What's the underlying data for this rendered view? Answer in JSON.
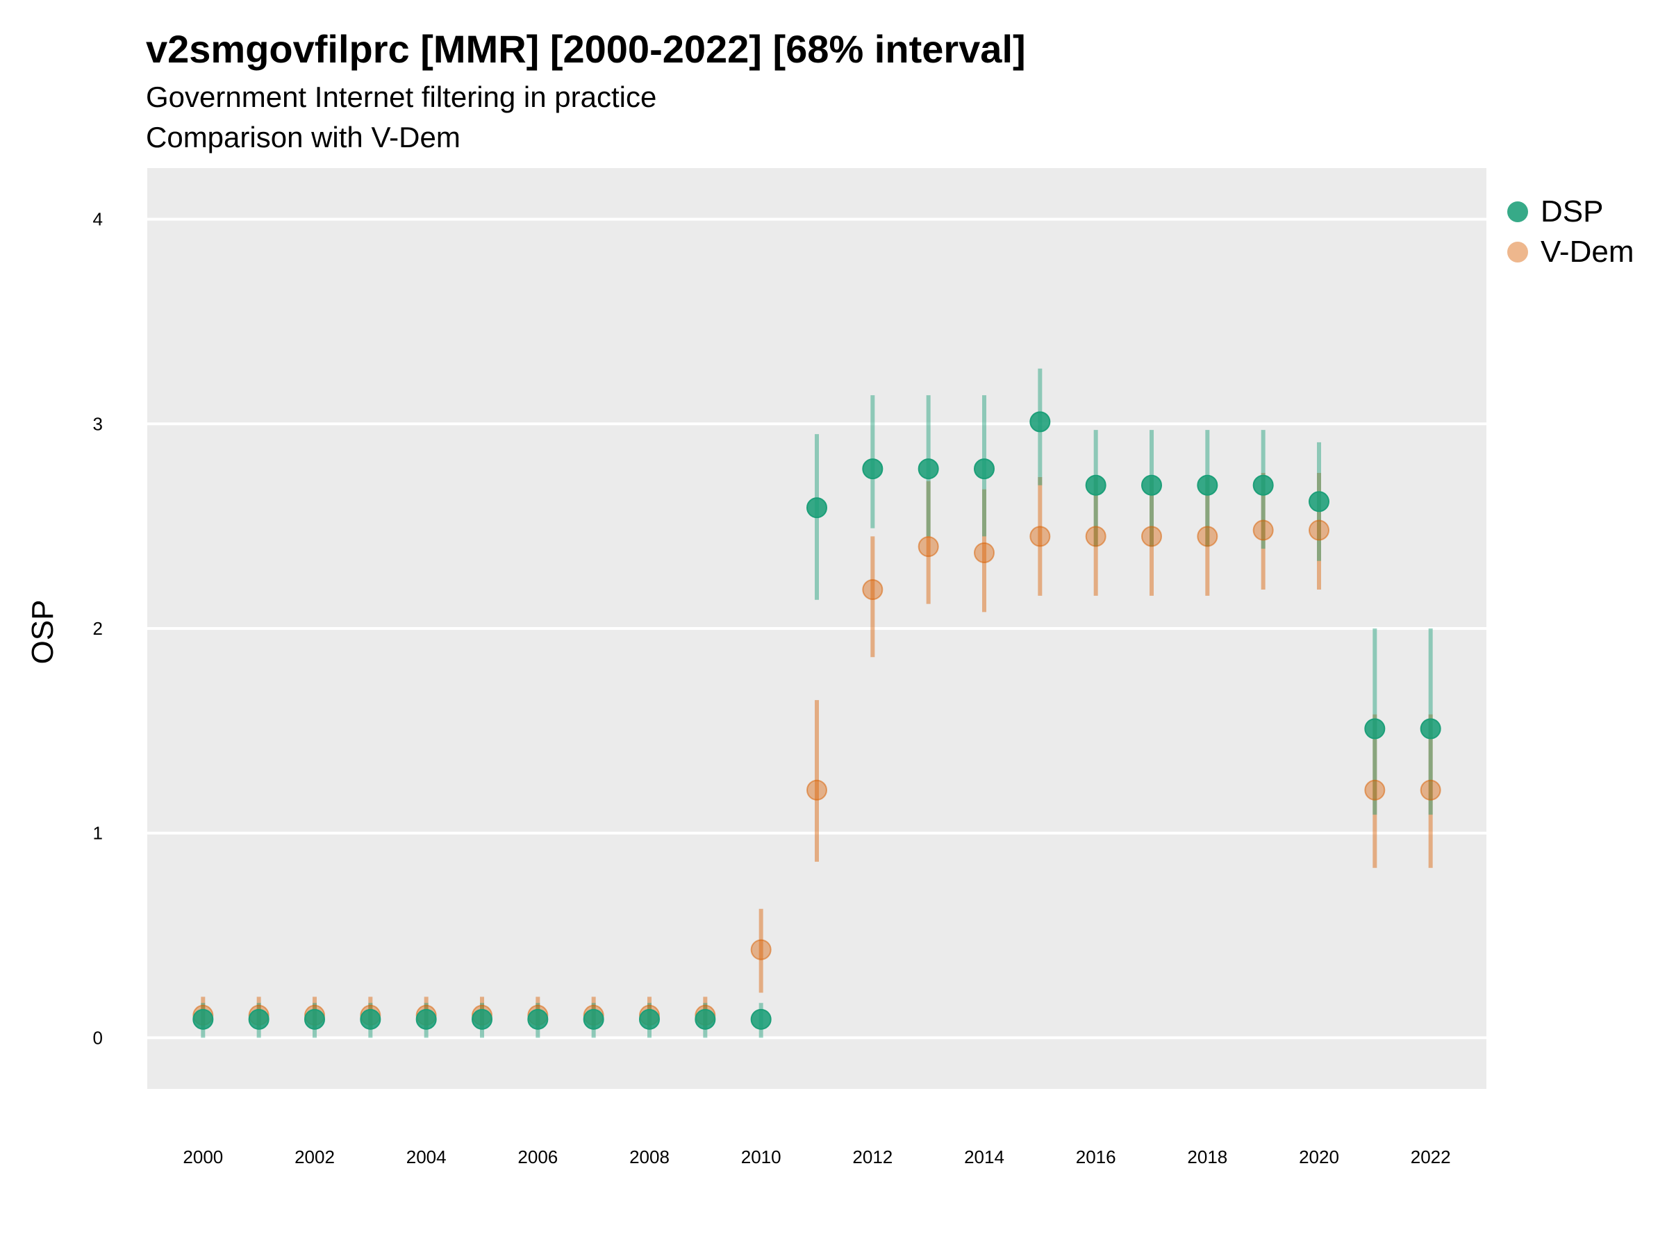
{
  "chart_data": {
    "type": "scatter",
    "title": "v2smgovfilprc [MMR] [2000-2022] [68% interval]",
    "subtitle": "Government Internet filtering in practice",
    "subtitle2": "Comparison with V-Dem",
    "xlabel": "",
    "ylabel": "OSP",
    "xlim": [
      1999.0,
      2023.0
    ],
    "ylim": [
      -0.25,
      4.25
    ],
    "yticks": [
      0,
      1,
      2,
      3,
      4
    ],
    "xticks": [
      2000,
      2002,
      2004,
      2006,
      2008,
      2010,
      2012,
      2014,
      2016,
      2018,
      2020,
      2022
    ],
    "grid": true,
    "legend_position": "right",
    "series": [
      {
        "name": "DSP",
        "color": "#1b9e77",
        "x": [
          2000,
          2001,
          2002,
          2003,
          2004,
          2005,
          2006,
          2007,
          2008,
          2009,
          2010,
          2011,
          2012,
          2013,
          2014,
          2015,
          2016,
          2017,
          2018,
          2019,
          2020,
          2021,
          2022
        ],
        "y": [
          0.09,
          0.09,
          0.09,
          0.09,
          0.09,
          0.09,
          0.09,
          0.09,
          0.09,
          0.09,
          0.09,
          2.59,
          2.78,
          2.78,
          2.78,
          3.01,
          2.7,
          2.7,
          2.7,
          2.7,
          2.62,
          1.51,
          1.51
        ],
        "lower": [
          0.0,
          0.0,
          0.0,
          0.0,
          0.0,
          0.0,
          0.0,
          0.0,
          0.0,
          0.0,
          0.0,
          2.14,
          2.49,
          2.45,
          2.45,
          2.7,
          2.4,
          2.4,
          2.4,
          2.39,
          2.33,
          1.09,
          1.09
        ],
        "upper": [
          0.17,
          0.17,
          0.17,
          0.17,
          0.17,
          0.17,
          0.17,
          0.17,
          0.17,
          0.17,
          0.17,
          2.95,
          3.14,
          3.14,
          3.14,
          3.27,
          2.97,
          2.97,
          2.97,
          2.97,
          2.91,
          2.0,
          2.0
        ]
      },
      {
        "name": "V-Dem",
        "color": "#d95f02",
        "x": [
          2000,
          2001,
          2002,
          2003,
          2004,
          2005,
          2006,
          2007,
          2008,
          2009,
          2010,
          2011,
          2012,
          2013,
          2014,
          2015,
          2016,
          2017,
          2018,
          2019,
          2020,
          2021,
          2022
        ],
        "y": [
          0.11,
          0.11,
          0.11,
          0.11,
          0.11,
          0.11,
          0.11,
          0.11,
          0.11,
          0.11,
          0.43,
          1.21,
          2.19,
          2.4,
          2.37,
          2.45,
          2.45,
          2.45,
          2.45,
          2.48,
          2.48,
          1.21,
          1.21
        ],
        "lower": [
          0.04,
          0.04,
          0.04,
          0.04,
          0.04,
          0.04,
          0.04,
          0.04,
          0.04,
          0.04,
          0.22,
          0.86,
          1.86,
          2.12,
          2.08,
          2.16,
          2.16,
          2.16,
          2.16,
          2.19,
          2.19,
          0.83,
          0.83
        ],
        "upper": [
          0.2,
          0.2,
          0.2,
          0.2,
          0.2,
          0.2,
          0.2,
          0.2,
          0.2,
          0.2,
          0.63,
          1.65,
          2.45,
          2.72,
          2.68,
          2.74,
          2.74,
          2.74,
          2.74,
          2.76,
          2.76,
          1.58,
          1.58
        ]
      }
    ]
  }
}
